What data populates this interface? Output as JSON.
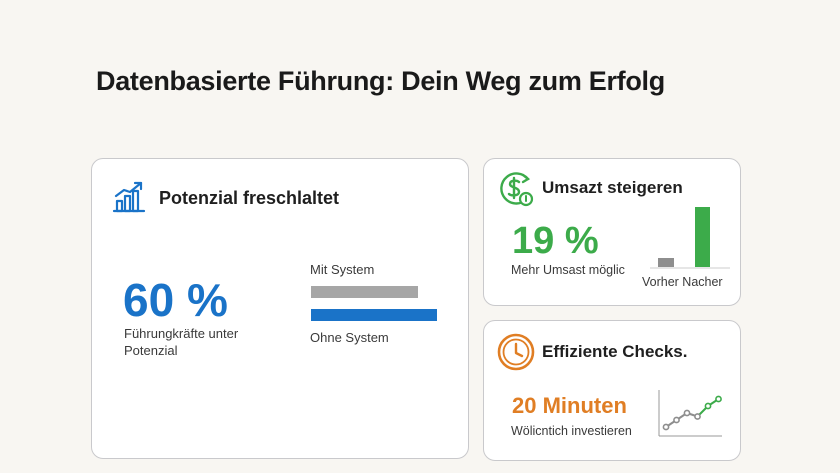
{
  "title": "Datenbasierte Führung: Dein Weg zum Erfolg",
  "colors": {
    "blue": "#1a73c8",
    "green": "#3cab4a",
    "orange": "#e07e24",
    "gray": "#a6a6a6"
  },
  "card_main": {
    "icon": "bar-chart-growth-icon",
    "heading": "Potenzial freschlaltet",
    "value": "60 %",
    "description": "Führungkräfte unter Potenzial",
    "bars": [
      {
        "label": "Mit System",
        "value": 0.85,
        "color": "#a6a6a6"
      },
      {
        "label": "Ohne System",
        "value": 1.0,
        "color": "#1a73c8"
      }
    ]
  },
  "card_umsatz": {
    "icon": "dollar-growth-icon",
    "heading": "Umsazt steigeren",
    "value": "19 %",
    "description": "Mehr Umsast möglic",
    "chart_label": "Vorher Nacher",
    "chart_values": {
      "vorher": 0.15,
      "nacher": 1.0
    }
  },
  "card_checks": {
    "icon": "clock-icon",
    "heading": "Effiziente Checks.",
    "value": "20 Minuten",
    "description": "Wölicntich investieren",
    "trend_values": [
      1,
      2,
      3,
      2.5,
      4,
      5
    ]
  }
}
